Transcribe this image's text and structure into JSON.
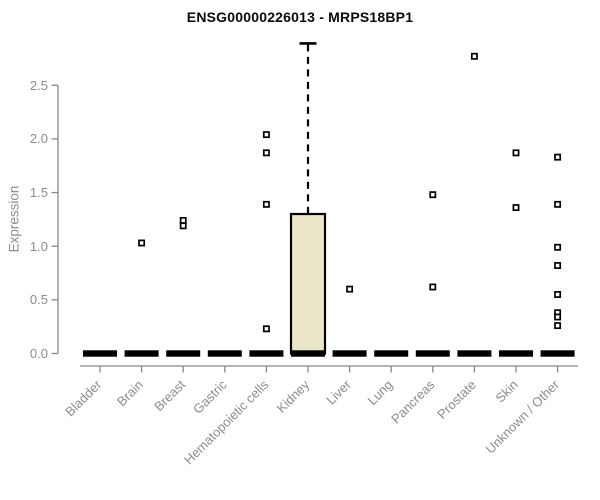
{
  "title": "ENSG00000226013 - MRPS18BP1",
  "chart_data": {
    "type": "boxplot",
    "title": "ENSG00000226013 - MRPS18BP1",
    "xlabel": "",
    "ylabel": "Expression",
    "ylim": [
      0,
      2.9
    ],
    "yticks": [
      "0.0",
      "0.5",
      "1.0",
      "1.5",
      "2.0",
      "2.5"
    ],
    "grid": false,
    "legend": "none",
    "categories": [
      "Bladder",
      "Brain",
      "Breast",
      "Gastric",
      "Hematopoietic cells",
      "Kidney",
      "Liver",
      "Lung",
      "Pancreas",
      "Prostate",
      "Skin",
      "Unknown / Other"
    ],
    "series": [
      {
        "category": "Bladder",
        "median": 0,
        "q1": 0,
        "q3": 0,
        "whisker_low": 0,
        "whisker_high": 0,
        "outliers": []
      },
      {
        "category": "Brain",
        "median": 0,
        "q1": 0,
        "q3": 0,
        "whisker_low": 0,
        "whisker_high": 0,
        "outliers": [
          1.03
        ]
      },
      {
        "category": "Breast",
        "median": 0,
        "q1": 0,
        "q3": 0,
        "whisker_low": 0,
        "whisker_high": 0,
        "outliers": [
          1.24,
          1.19
        ]
      },
      {
        "category": "Gastric",
        "median": 0,
        "q1": 0,
        "q3": 0,
        "whisker_low": 0,
        "whisker_high": 0,
        "outliers": []
      },
      {
        "category": "Hematopoietic cells",
        "median": 0,
        "q1": 0,
        "q3": 0,
        "whisker_low": 0,
        "whisker_high": 0,
        "outliers": [
          2.04,
          1.87,
          1.39,
          0.23
        ]
      },
      {
        "category": "Kidney",
        "median": 0,
        "q1": 0,
        "q3": 1.3,
        "whisker_low": 0,
        "whisker_high": 2.89,
        "outliers": []
      },
      {
        "category": "Liver",
        "median": 0,
        "q1": 0,
        "q3": 0,
        "whisker_low": 0,
        "whisker_high": 0,
        "outliers": [
          0.6
        ]
      },
      {
        "category": "Lung",
        "median": 0,
        "q1": 0,
        "q3": 0,
        "whisker_low": 0,
        "whisker_high": 0,
        "outliers": []
      },
      {
        "category": "Pancreas",
        "median": 0,
        "q1": 0,
        "q3": 0,
        "whisker_low": 0,
        "whisker_high": 0,
        "outliers": [
          1.48,
          0.62
        ]
      },
      {
        "category": "Prostate",
        "median": 0,
        "q1": 0,
        "q3": 0,
        "whisker_low": 0,
        "whisker_high": 0,
        "outliers": [
          2.77
        ]
      },
      {
        "category": "Skin",
        "median": 0,
        "q1": 0,
        "q3": 0,
        "whisker_low": 0,
        "whisker_high": 0,
        "outliers": [
          1.87,
          1.36
        ]
      },
      {
        "category": "Unknown / Other",
        "median": 0,
        "q1": 0,
        "q3": 0,
        "whisker_low": 0,
        "whisker_high": 0,
        "outliers": [
          1.83,
          1.39,
          0.99,
          0.82,
          0.55,
          0.38,
          0.34,
          0.26
        ]
      }
    ],
    "colors": {
      "background": "#ffffff",
      "box_fill": "#ece6c9",
      "box_border": "#000000",
      "median": "#000000",
      "whisker": "#000000",
      "point": "#000000",
      "axis_line": "#888888",
      "tick_label": "#8c8c8c",
      "title_text": "#0a0a0a"
    }
  }
}
